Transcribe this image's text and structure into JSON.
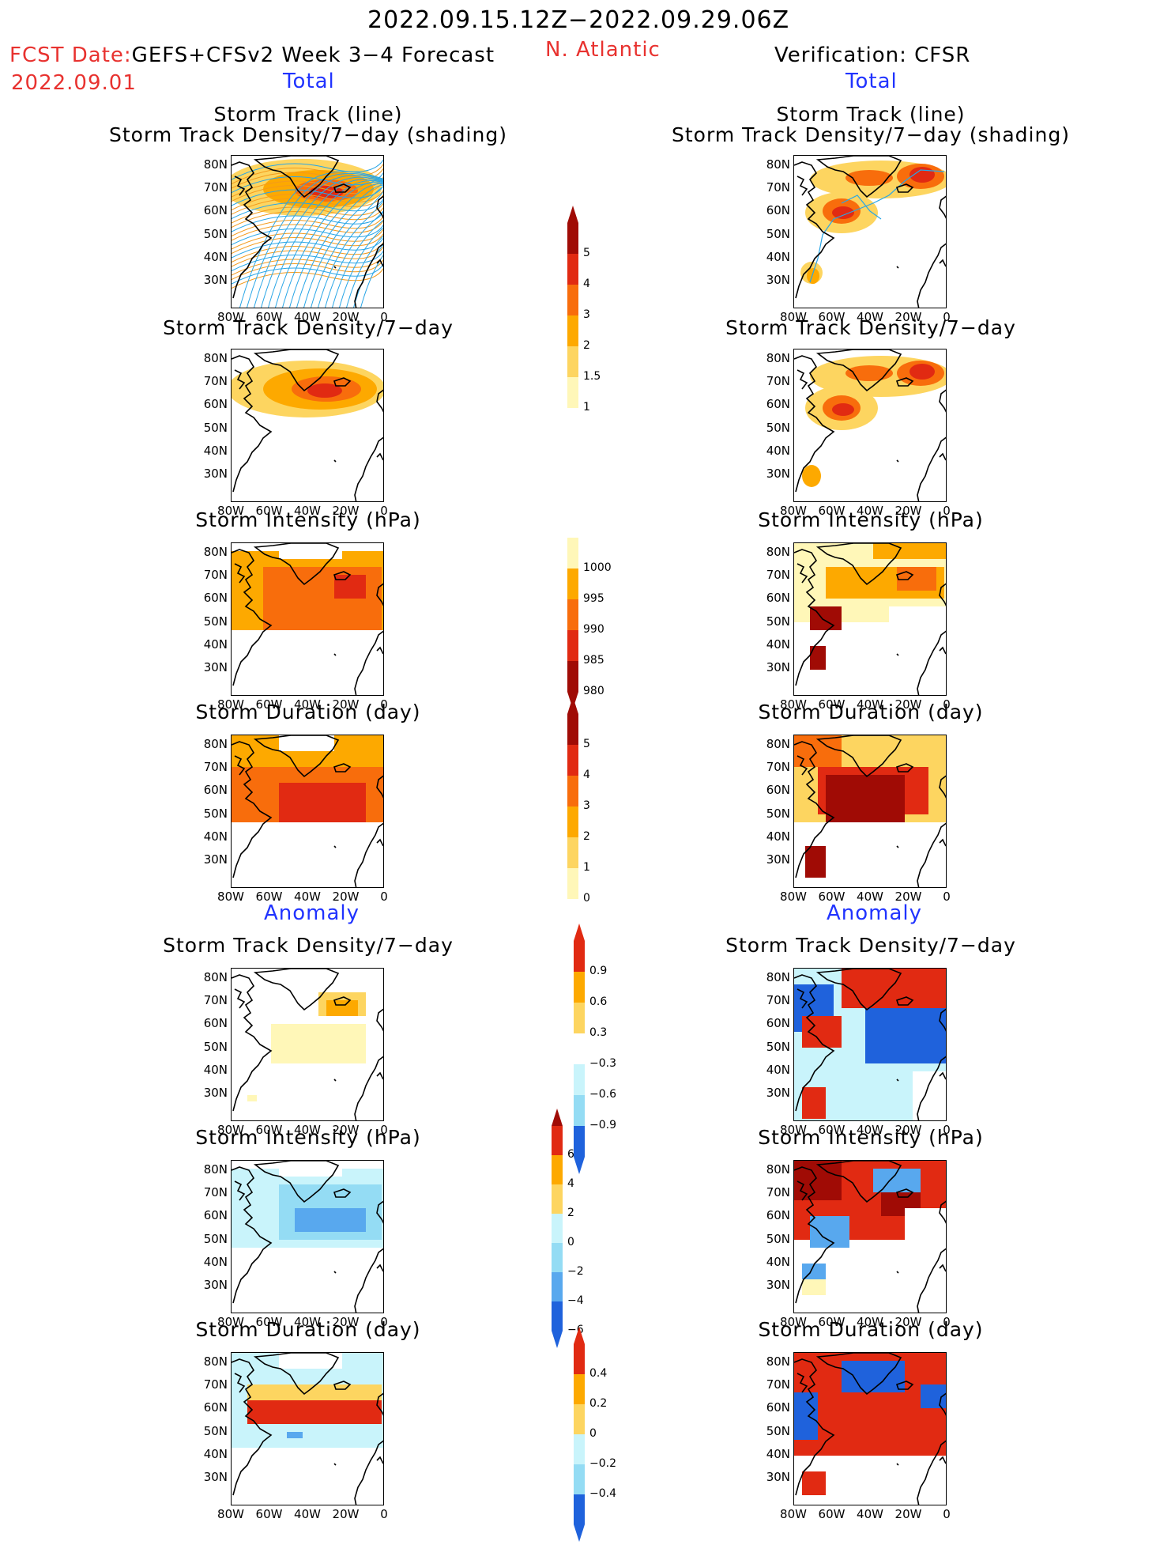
{
  "header": {
    "date_range": "2022.09.15.12Z−2022.09.29.06Z",
    "fcst_label": "FCST Date:",
    "model_label": "GEFS+CFSv2 Week 3−4 Forecast",
    "region": "N. Atlantic",
    "verification": "Verification: CFSR",
    "init_date": "2022.09.01",
    "left_section_total": "Total",
    "right_section_total": "Total",
    "left_section_anom": "Anomaly",
    "right_section_anom": "Anomaly"
  },
  "axes": {
    "lat_labels": [
      "80N",
      "70N",
      "60N",
      "50N",
      "40N",
      "30N"
    ],
    "lon_labels": [
      "80W",
      "60W",
      "40W",
      "20W",
      "0"
    ]
  },
  "panels": {
    "track_title_1": "Storm Track (line)",
    "track_title_2": "Storm Track Density/7−day (shading)",
    "density": "Storm Track Density/7−day",
    "intensity": "Storm Intensity (hPa)",
    "duration": "Storm Duration (day)"
  },
  "colorbars": {
    "density_total": [
      "5",
      "4",
      "3",
      "2",
      "1.5",
      "1"
    ],
    "intensity_total": [
      "1000",
      "995",
      "990",
      "985",
      "980"
    ],
    "duration_total": [
      "5",
      "4",
      "3",
      "2",
      "1",
      "0"
    ],
    "density_anom": [
      "0.9",
      "0.6",
      "0.3",
      "−0.3",
      "−0.6",
      "−0.9"
    ],
    "intensity_anom": [
      "6",
      "4",
      "2",
      "0",
      "−2",
      "−4",
      "−6"
    ],
    "duration_anom": [
      "0.4",
      "0.2",
      "0",
      "−0.2",
      "−0.4"
    ]
  },
  "colors": {
    "c1": "#fff7b8",
    "c2": "#fdd560",
    "c3": "#fda900",
    "c4": "#f86d0c",
    "c5": "#e12a12",
    "c6": "#a00b05",
    "n1": "#c9f4fb",
    "n2": "#94dcf4",
    "n3": "#58a8ee",
    "n4": "#1f62dc",
    "track_orange": "#f39a1c",
    "track_blue": "#2aa6e6",
    "header_red": "#e8322f",
    "header_blue": "#2033ff"
  }
}
